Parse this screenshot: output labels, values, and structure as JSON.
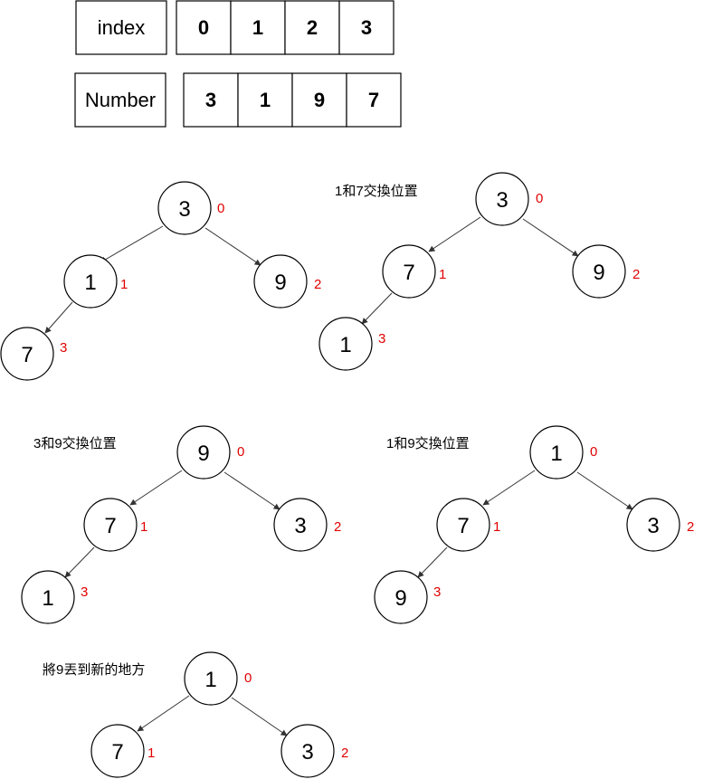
{
  "table": {
    "index_label": "index",
    "index_values": [
      "0",
      "1",
      "2",
      "3"
    ],
    "number_label": "Number",
    "number_values": [
      "3",
      "1",
      "9",
      "7"
    ]
  },
  "trees": [
    {
      "caption": "",
      "nodes": [
        {
          "value": "3",
          "index": "0"
        },
        {
          "value": "1",
          "index": "1"
        },
        {
          "value": "9",
          "index": "2"
        },
        {
          "value": "7",
          "index": "3"
        }
      ]
    },
    {
      "caption": "1和7交換位置",
      "nodes": [
        {
          "value": "3",
          "index": "0"
        },
        {
          "value": "7",
          "index": "1"
        },
        {
          "value": "9",
          "index": "2"
        },
        {
          "value": "1",
          "index": "3"
        }
      ]
    },
    {
      "caption": "3和9交換位置",
      "nodes": [
        {
          "value": "9",
          "index": "0"
        },
        {
          "value": "7",
          "index": "1"
        },
        {
          "value": "3",
          "index": "2"
        },
        {
          "value": "1",
          "index": "3"
        }
      ]
    },
    {
      "caption": "1和9交換位置",
      "nodes": [
        {
          "value": "1",
          "index": "0"
        },
        {
          "value": "7",
          "index": "1"
        },
        {
          "value": "3",
          "index": "2"
        },
        {
          "value": "9",
          "index": "3"
        }
      ]
    },
    {
      "caption": "將9丟到新的地方",
      "nodes": [
        {
          "value": "1",
          "index": "0"
        },
        {
          "value": "7",
          "index": "1"
        },
        {
          "value": "3",
          "index": "2"
        }
      ]
    }
  ]
}
